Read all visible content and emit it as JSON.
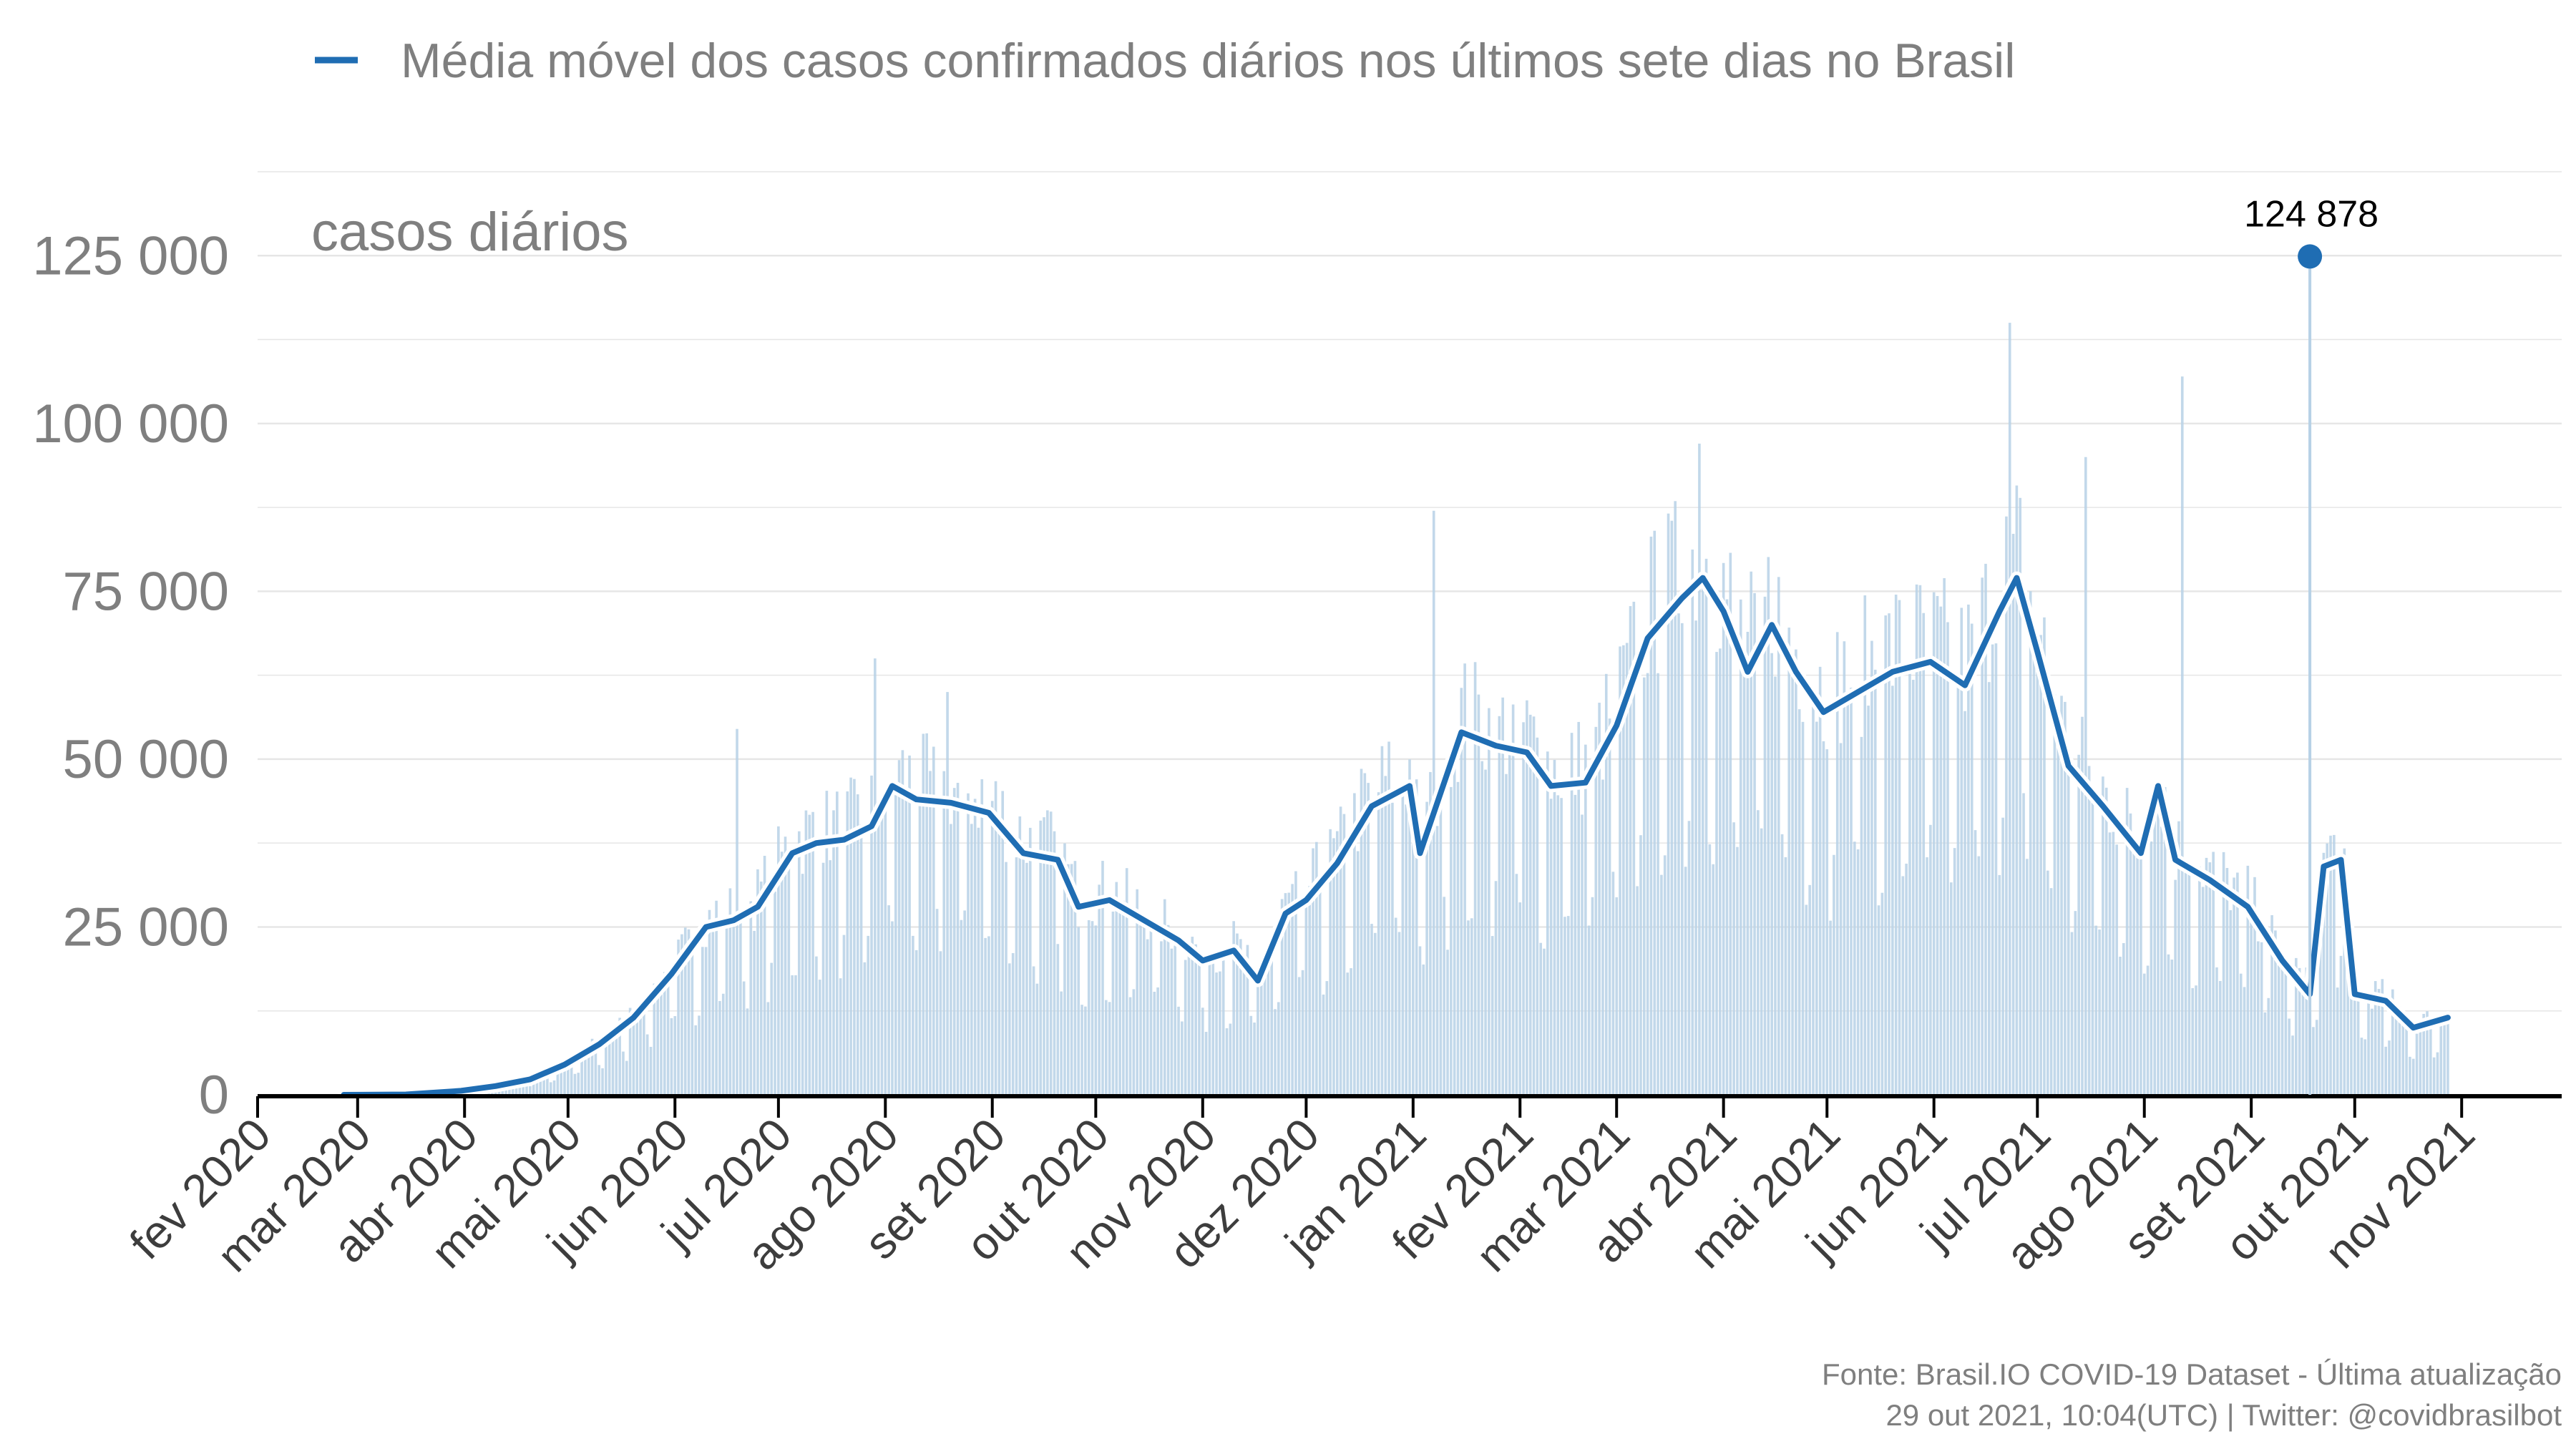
{
  "chart_data": {
    "type": "bar",
    "ylabel": "casos diários",
    "ylim": [
      0,
      137500
    ],
    "yticks": [
      0,
      25000,
      50000,
      75000,
      100000,
      125000
    ],
    "ytick_labels": [
      "0",
      "25 000",
      "50 000",
      "75 000",
      "100 000",
      "125 000"
    ],
    "x_range": [
      "2020-02-01",
      "2021-11-30"
    ],
    "x_ticks": [
      "2020-02-01",
      "2020-03-01",
      "2020-04-01",
      "2020-05-01",
      "2020-06-01",
      "2020-07-01",
      "2020-08-01",
      "2020-09-01",
      "2020-10-01",
      "2020-11-01",
      "2020-12-01",
      "2021-01-01",
      "2021-02-01",
      "2021-03-01",
      "2021-04-01",
      "2021-05-01",
      "2021-06-01",
      "2021-07-01",
      "2021-08-01",
      "2021-09-01",
      "2021-10-01",
      "2021-11-01"
    ],
    "x_tick_labels": [
      "fev 2020",
      "mar 2020",
      "abr 2020",
      "mai 2020",
      "jun 2020",
      "jul 2020",
      "ago 2020",
      "set 2020",
      "out 2020",
      "nov 2020",
      "dez 2020",
      "jan 2021",
      "fev 2021",
      "mar 2021",
      "abr 2021",
      "mai 2021",
      "jun 2021",
      "jul 2021",
      "ago 2021",
      "set 2021",
      "out 2021",
      "nov 2021"
    ],
    "grid": true,
    "legend_position": "top",
    "series": [
      {
        "name": "Média móvel dos casos confirmados diários nos últimos sete dias no Brasil",
        "type": "line",
        "color": "#1f6db3",
        "points": [
          [
            "2020-02-26",
            0
          ],
          [
            "2020-03-15",
            50
          ],
          [
            "2020-03-31",
            600
          ],
          [
            "2020-04-10",
            1300
          ],
          [
            "2020-04-20",
            2300
          ],
          [
            "2020-04-30",
            4500
          ],
          [
            "2020-05-10",
            7500
          ],
          [
            "2020-05-20",
            11500
          ],
          [
            "2020-05-31",
            18000
          ],
          [
            "2020-06-10",
            25000
          ],
          [
            "2020-06-18",
            26000
          ],
          [
            "2020-06-25",
            28000
          ],
          [
            "2020-07-05",
            36000
          ],
          [
            "2020-07-12",
            37500
          ],
          [
            "2020-07-20",
            38000
          ],
          [
            "2020-07-28",
            40000
          ],
          [
            "2020-08-03",
            46000
          ],
          [
            "2020-08-10",
            44000
          ],
          [
            "2020-08-20",
            43500
          ],
          [
            "2020-08-31",
            42000
          ],
          [
            "2020-09-10",
            36000
          ],
          [
            "2020-09-20",
            35000
          ],
          [
            "2020-09-26",
            28000
          ],
          [
            "2020-10-05",
            29000
          ],
          [
            "2020-10-15",
            26000
          ],
          [
            "2020-10-25",
            23000
          ],
          [
            "2020-11-01",
            20000
          ],
          [
            "2020-11-10",
            21500
          ],
          [
            "2020-11-17",
            17000
          ],
          [
            "2020-11-25",
            27000
          ],
          [
            "2020-12-01",
            29000
          ],
          [
            "2020-12-10",
            34500
          ],
          [
            "2020-12-20",
            43000
          ],
          [
            "2020-12-31",
            46000
          ],
          [
            "2021-01-03",
            36000
          ],
          [
            "2021-01-15",
            54000
          ],
          [
            "2021-01-25",
            52000
          ],
          [
            "2021-02-03",
            51000
          ],
          [
            "2021-02-10",
            46000
          ],
          [
            "2021-02-20",
            46500
          ],
          [
            "2021-03-01",
            55000
          ],
          [
            "2021-03-10",
            68000
          ],
          [
            "2021-03-20",
            74000
          ],
          [
            "2021-03-26",
            77000
          ],
          [
            "2021-04-01",
            72000
          ],
          [
            "2021-04-08",
            63000
          ],
          [
            "2021-04-15",
            70000
          ],
          [
            "2021-04-22",
            63000
          ],
          [
            "2021-04-30",
            57000
          ],
          [
            "2021-05-10",
            60000
          ],
          [
            "2021-05-20",
            63000
          ],
          [
            "2021-05-31",
            64500
          ],
          [
            "2021-06-10",
            61000
          ],
          [
            "2021-06-20",
            72000
          ],
          [
            "2021-06-25",
            77000
          ],
          [
            "2021-07-01",
            66000
          ],
          [
            "2021-07-10",
            49000
          ],
          [
            "2021-07-20",
            43000
          ],
          [
            "2021-07-31",
            36000
          ],
          [
            "2021-08-05",
            46000
          ],
          [
            "2021-08-10",
            35000
          ],
          [
            "2021-08-20",
            32000
          ],
          [
            "2021-08-31",
            28000
          ],
          [
            "2021-09-10",
            20000
          ],
          [
            "2021-09-18",
            15000
          ],
          [
            "2021-09-22",
            34000
          ],
          [
            "2021-09-27",
            35000
          ],
          [
            "2021-10-01",
            15000
          ],
          [
            "2021-10-10",
            14000
          ],
          [
            "2021-10-18",
            10000
          ],
          [
            "2021-10-28",
            11500
          ]
        ]
      }
    ],
    "daily_bars": {
      "color": "#b7d1e6",
      "max_value": 124878,
      "max_date": "2021-09-18",
      "spikes": [
        [
          "2020-06-19",
          54500
        ],
        [
          "2020-07-29",
          65000
        ],
        [
          "2020-08-19",
          60000
        ],
        [
          "2021-01-07",
          87000
        ],
        [
          "2021-03-25",
          97000
        ],
        [
          "2021-06-23",
          115000
        ],
        [
          "2021-07-15",
          95000
        ],
        [
          "2021-08-12",
          107000
        ]
      ]
    },
    "annotations": [
      {
        "text": "124 878",
        "date": "2021-09-18",
        "value": 124878,
        "marker": "point"
      }
    ],
    "source_lines": [
      "Fonte: Brasil.IO COVID-19 Dataset - Última atualização",
      "29 out 2021, 10:04(UTC) | Twitter: @covidbrasilbot"
    ]
  }
}
